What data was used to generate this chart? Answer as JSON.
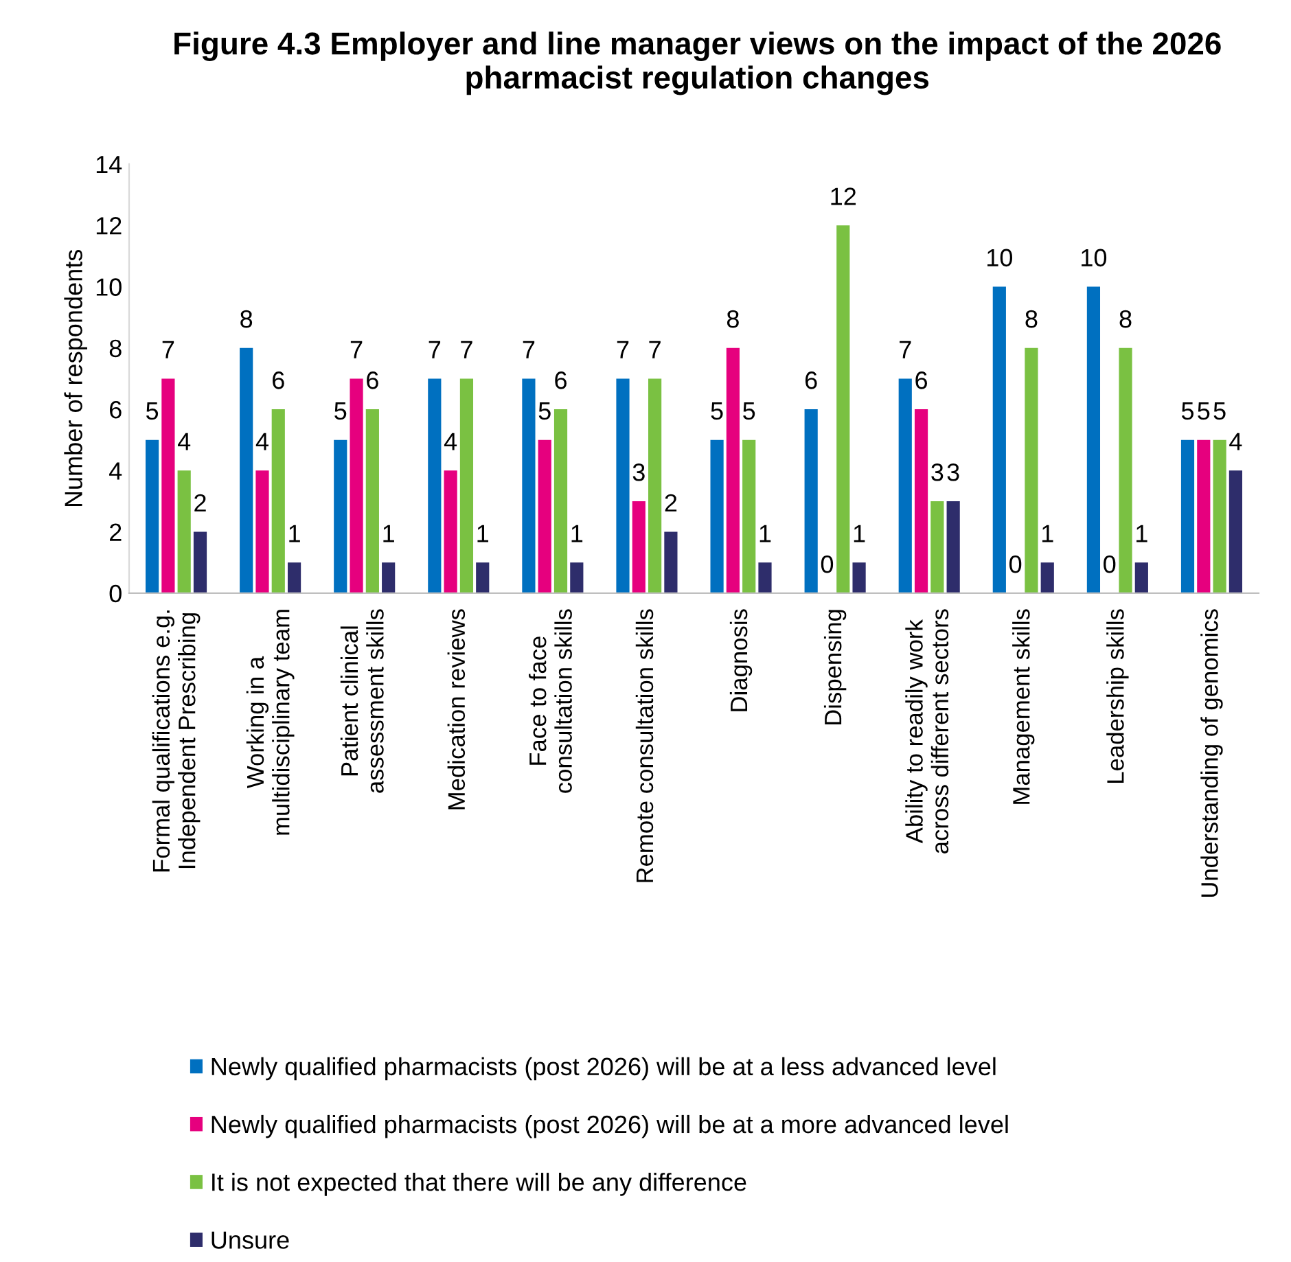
{
  "chart_data": {
    "type": "bar",
    "title": "Figure 4.3 Employer and line manager views on the impact of the 2026 pharmacist regulation changes",
    "ylabel": "Number of respondents",
    "categories": [
      "Formal qualifications e.g. Independent Prescribing",
      "Working in a multidisciplinary team",
      "Patient clinical assessment skills",
      "Medication reviews",
      "Face to face consultation skills",
      "Remote consultation skills",
      "Diagnosis",
      "Dispensing",
      "Ability to readily work across different sectors",
      "Management skills",
      "Leadership skills",
      "Understanding of genomics"
    ],
    "series": [
      {
        "name": "Newly qualified pharmacists (post 2026) will be at a less advanced level",
        "color": "#0070c0",
        "values": [
          5,
          8,
          5,
          7,
          7,
          7,
          5,
          6,
          7,
          10,
          10,
          5
        ]
      },
      {
        "name": "Newly qualified pharmacists (post 2026) will be at a more advanced level",
        "color": "#e6007e",
        "values": [
          7,
          4,
          7,
          4,
          5,
          3,
          8,
          0,
          6,
          0,
          0,
          5
        ]
      },
      {
        "name": "It is not expected that there will be any difference",
        "color": "#7ac142",
        "values": [
          4,
          6,
          6,
          7,
          6,
          7,
          5,
          12,
          3,
          8,
          8,
          5
        ]
      },
      {
        "name": "Unsure",
        "color": "#2e2d6b",
        "values": [
          2,
          1,
          1,
          1,
          1,
          2,
          1,
          1,
          3,
          1,
          1,
          4
        ]
      }
    ],
    "ylim": [
      0,
      14
    ],
    "yticks": [
      0,
      2,
      4,
      6,
      8,
      10,
      12,
      14
    ],
    "data_labels": true,
    "grid": false,
    "legend": "bottom"
  }
}
